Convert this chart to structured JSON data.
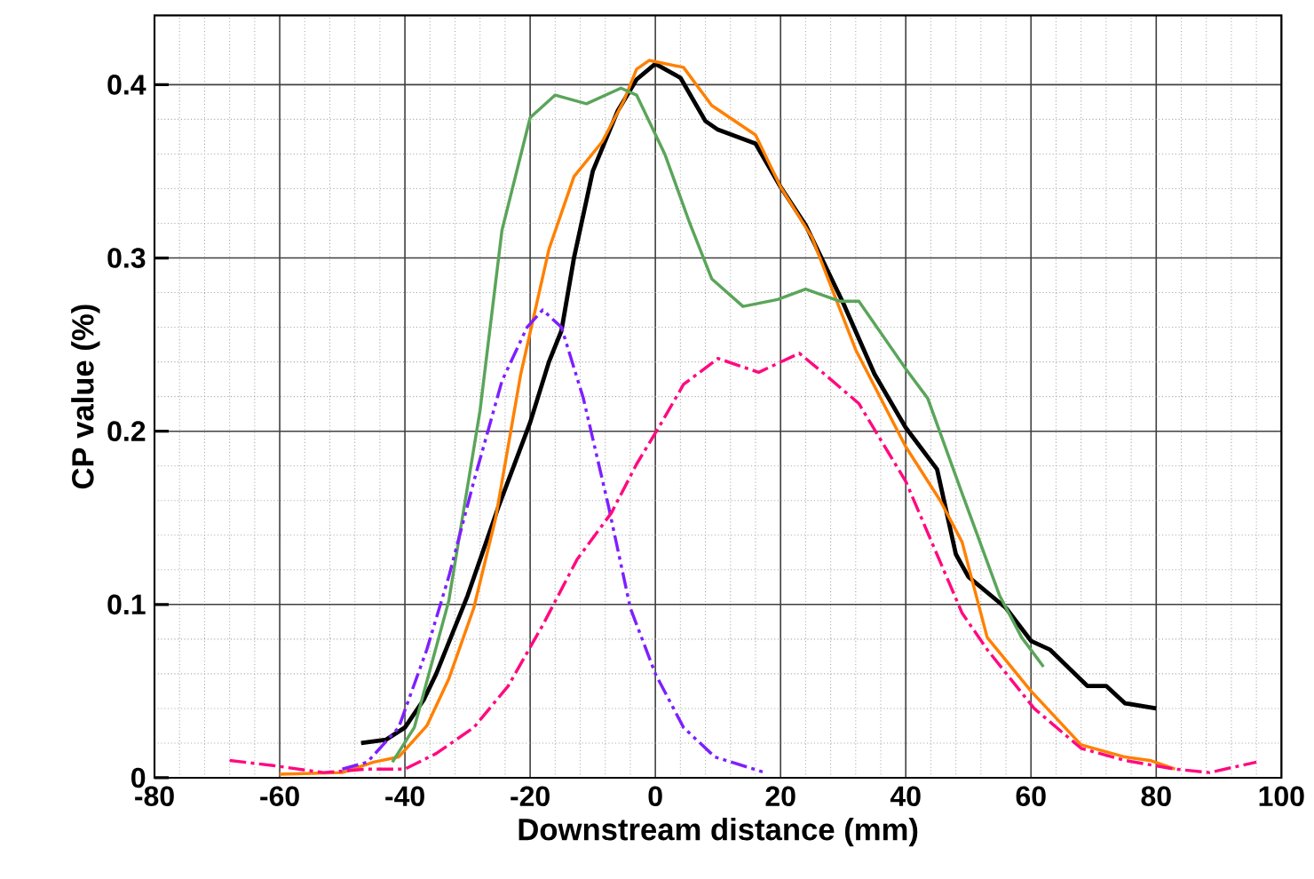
{
  "chart_data": {
    "type": "line",
    "xlabel": "Downstream distance (mm)",
    "ylabel": "CP value (%)",
    "xlim": [
      -80,
      100
    ],
    "ylim": [
      0,
      0.44
    ],
    "xticks": [
      -80,
      -60,
      -40,
      -20,
      0,
      20,
      40,
      60,
      80,
      100
    ],
    "yticks": [
      0,
      0.1,
      0.2,
      0.3,
      0.4
    ],
    "grid": true,
    "marker": "none",
    "series": [
      {
        "color": "#000000",
        "line_style": "solid",
        "x": [
          -47,
          -43,
          -40,
          -37,
          -35,
          -30,
          -25,
          -20,
          -17,
          -15,
          -13,
          -10,
          -6,
          -3,
          0,
          4,
          8,
          10,
          16,
          20,
          24,
          30,
          35,
          40,
          45,
          48,
          50,
          56,
          60,
          63,
          69,
          72,
          75,
          80
        ],
        "values": [
          0.02,
          0.022,
          0.029,
          0.045,
          0.06,
          0.105,
          0.157,
          0.205,
          0.24,
          0.258,
          0.3,
          0.35,
          0.385,
          0.403,
          0.412,
          0.404,
          0.379,
          0.374,
          0.366,
          0.341,
          0.319,
          0.274,
          0.233,
          0.202,
          0.178,
          0.129,
          0.116,
          0.098,
          0.079,
          0.074,
          0.053,
          0.053,
          0.043,
          0.04
        ]
      },
      {
        "color": "#ff8000",
        "line_style": "solid",
        "x": [
          -60,
          -50,
          -45,
          -41,
          -36.5,
          -33,
          -29,
          -25.5,
          -21.5,
          -17,
          -13,
          -8.5,
          -5,
          -3,
          -1,
          4.5,
          9,
          16,
          20,
          25,
          32,
          40,
          45.5,
          49,
          53,
          60,
          68,
          75,
          79,
          83
        ],
        "values": [
          0.002,
          0.003,
          0.009,
          0.012,
          0.03,
          0.057,
          0.098,
          0.15,
          0.233,
          0.305,
          0.347,
          0.367,
          0.391,
          0.409,
          0.414,
          0.41,
          0.388,
          0.371,
          0.341,
          0.312,
          0.247,
          0.191,
          0.16,
          0.136,
          0.081,
          0.05,
          0.019,
          0.012,
          0.01,
          0.005
        ]
      },
      {
        "color": "#5aa55a",
        "line_style": "solid",
        "x": [
          -42,
          -38.5,
          -33,
          -28,
          -24.5,
          -20,
          -16,
          -11,
          -5.5,
          -3,
          1.5,
          5.5,
          9,
          14,
          19.5,
          24,
          29.5,
          32.5,
          40,
          43.5,
          49,
          55,
          58.5,
          62
        ],
        "values": [
          0.009,
          0.029,
          0.102,
          0.212,
          0.316,
          0.381,
          0.394,
          0.389,
          0.398,
          0.394,
          0.36,
          0.32,
          0.288,
          0.272,
          0.276,
          0.282,
          0.275,
          0.275,
          0.236,
          0.219,
          0.164,
          0.105,
          0.081,
          0.064
        ]
      },
      {
        "color": "#7f1fff",
        "line_style": "dashdotdot",
        "x": [
          -50,
          -46,
          -41,
          -36.5,
          -33,
          -29,
          -24.5,
          -20.5,
          -18,
          -15,
          -11.5,
          -7.5,
          -4,
          0,
          4.5,
          9.5,
          17.5
        ],
        "values": [
          0.005,
          0.009,
          0.029,
          0.074,
          0.116,
          0.171,
          0.229,
          0.26,
          0.27,
          0.26,
          0.219,
          0.157,
          0.098,
          0.06,
          0.029,
          0.012,
          0.003
        ]
      },
      {
        "color": "#ff0a80",
        "line_style": "dashdot",
        "x": [
          -68,
          -61,
          -53,
          -46,
          -40,
          -35,
          -29,
          -23.5,
          -18,
          -12.5,
          -7,
          -3,
          1,
          4.5,
          10,
          16.5,
          23,
          27,
          32.5,
          40,
          44.5,
          49,
          53,
          60.5,
          68,
          75,
          83,
          88.5,
          96
        ],
        "values": [
          0.01,
          0.007,
          0.003,
          0.005,
          0.005,
          0.014,
          0.029,
          0.053,
          0.088,
          0.126,
          0.153,
          0.181,
          0.205,
          0.227,
          0.242,
          0.234,
          0.245,
          0.233,
          0.216,
          0.171,
          0.133,
          0.095,
          0.074,
          0.04,
          0.017,
          0.01,
          0.005,
          0.003,
          0.009
        ]
      }
    ]
  }
}
